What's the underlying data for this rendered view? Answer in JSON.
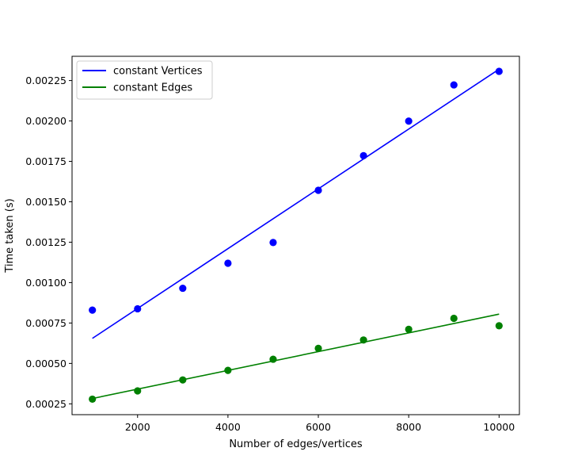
{
  "chart_data": {
    "type": "scatter",
    "xlabel": "Number of edges/vertices",
    "ylabel": "Time taken (s)",
    "xlim": [
      550,
      10450
    ],
    "ylim": [
      0.000183,
      0.0024
    ],
    "xticks": [
      2000,
      4000,
      6000,
      8000,
      10000
    ],
    "yticks": [
      0.00025,
      0.0005,
      0.00075,
      0.001,
      0.00125,
      0.0015,
      0.00175,
      0.002,
      0.00225
    ],
    "ytick_labels": [
      "0.00025",
      "0.00050",
      "0.00075",
      "0.00100",
      "0.00125",
      "0.00150",
      "0.00175",
      "0.00200",
      "0.00225"
    ],
    "grid": false,
    "legend_position": "top-left",
    "x": [
      1000,
      2000,
      3000,
      4000,
      5000,
      6000,
      7000,
      8000,
      9000,
      10000
    ],
    "series": [
      {
        "name": "constant Vertices",
        "color": "#0000ff",
        "points": [
          0.00083,
          0.000838,
          0.000965,
          0.00112,
          0.001248,
          0.001571,
          0.001785,
          0.001999,
          0.002223,
          0.002307
        ],
        "fit_line": [
          [
            1000,
            0.000655
          ],
          [
            10000,
            0.00232
          ]
        ]
      },
      {
        "name": "constant Edges",
        "color": "#008000",
        "points": [
          0.000279,
          0.00033,
          0.000398,
          0.000457,
          0.000526,
          0.000593,
          0.000645,
          0.000711,
          0.000779,
          0.000733
        ],
        "fit_line": [
          [
            1000,
            0.000283
          ],
          [
            10000,
            0.000805
          ]
        ]
      }
    ]
  }
}
